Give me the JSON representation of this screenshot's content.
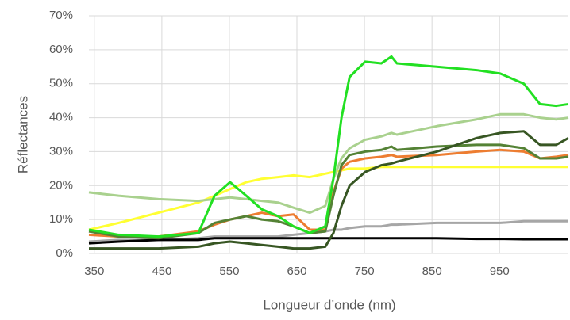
{
  "chart_data": {
    "type": "line",
    "x_label": "Longueur d’onde (nm)",
    "y_label": "Réflectances",
    "x": [
      342,
      386,
      445,
      504,
      528,
      551,
      575,
      598,
      622,
      645,
      669,
      692,
      704,
      716,
      728,
      751,
      775,
      790,
      798,
      857,
      916,
      951,
      986,
      1010,
      1034,
      1052
    ],
    "xlim": [
      342,
      1052
    ],
    "xticks": [
      350,
      450,
      550,
      650,
      750,
      850,
      950
    ],
    "ylim": [
      0,
      70
    ],
    "yticks": [
      {
        "value": 0,
        "label": "0%"
      },
      {
        "value": 10,
        "label": "10%"
      },
      {
        "value": 20,
        "label": "20%"
      },
      {
        "value": 30,
        "label": "30%"
      },
      {
        "value": 40,
        "label": "40%"
      },
      {
        "value": 50,
        "label": "50%"
      },
      {
        "value": 60,
        "label": "60%"
      },
      {
        "value": 70,
        "label": "70%"
      }
    ],
    "grid": true,
    "series": [
      {
        "color": "#a6a6a6",
        "values": [
          3.5,
          4,
          4,
          4.5,
          5,
          5,
          5,
          5,
          5,
          5.5,
          6,
          6.5,
          7,
          7,
          7.5,
          8,
          8,
          8.5,
          8.5,
          9,
          9,
          9,
          9.5,
          9.5,
          9.5,
          9.5
        ]
      },
      {
        "color": "#000000",
        "values": [
          3,
          3.5,
          4,
          4,
          4.5,
          4.5,
          4.5,
          4.5,
          4.5,
          4.5,
          4.5,
          4.5,
          4.5,
          4.5,
          4.5,
          4.5,
          4.5,
          4.5,
          4.5,
          4.5,
          4.3,
          4.3,
          4.2,
          4.2,
          4.2,
          4.2
        ]
      },
      {
        "color": "#ffff33",
        "values": [
          7,
          9,
          12,
          15,
          17,
          19,
          21,
          22,
          22.5,
          23,
          22.5,
          23.5,
          24,
          24.5,
          25,
          25,
          25.5,
          25.5,
          25.5,
          25.5,
          25.5,
          25.5,
          25.5,
          25.5,
          25.5,
          25.5
        ]
      },
      {
        "color": "#a9d18e",
        "values": [
          18,
          17,
          16,
          15.5,
          16,
          16.5,
          16,
          15.5,
          15,
          13.5,
          12,
          14,
          22,
          28,
          31,
          33.5,
          34.5,
          35.5,
          35,
          37.5,
          39.5,
          41,
          41,
          40,
          39.5,
          40
        ]
      },
      {
        "color": "#ed7d31",
        "values": [
          5.5,
          5,
          5,
          6.5,
          8.5,
          10,
          11,
          12,
          11,
          11.5,
          7,
          7,
          18,
          25,
          27,
          28,
          28.5,
          29,
          28.5,
          29,
          30,
          30.5,
          30,
          28,
          28.5,
          29
        ]
      },
      {
        "color": "#548235",
        "values": [
          6.5,
          5,
          4.5,
          6,
          9,
          10,
          11,
          10,
          9.5,
          8,
          6,
          6.5,
          17,
          26,
          29,
          30,
          30.5,
          31.5,
          30.5,
          31.5,
          32,
          32,
          31,
          28,
          28,
          28.5
        ]
      },
      {
        "color": "#375623",
        "values": [
          1.5,
          1.5,
          1.5,
          2,
          3,
          3.5,
          3,
          2.5,
          2,
          1.5,
          1.5,
          2,
          6,
          14,
          20,
          24,
          26,
          26.5,
          27,
          30,
          34,
          35.5,
          36,
          32,
          32,
          34
        ]
      },
      {
        "color": "#22e022",
        "values": [
          7,
          5.5,
          5,
          6,
          17,
          21,
          17,
          13,
          11,
          8,
          6,
          8,
          22,
          40,
          52,
          56.5,
          56,
          58,
          56,
          55,
          54,
          53,
          50,
          44,
          43.5,
          44
        ]
      }
    ]
  }
}
